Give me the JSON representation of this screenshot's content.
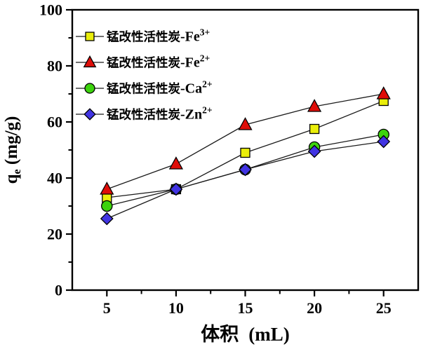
{
  "chart_data": {
    "type": "line",
    "title": "",
    "xlabel": "体积 (mL)",
    "ylabel": "qe (mg/g)",
    "xlabel_parts": {
      "cjk": "体积",
      "unit": "(mL)"
    },
    "ylabel_parts": {
      "base": "q",
      "subscript": "e",
      "unit": " (mg/g)"
    },
    "x": [
      5,
      10,
      15,
      20,
      25
    ],
    "xlim": [
      2.5,
      27.5
    ],
    "ylim": [
      0,
      100
    ],
    "x_major_ticks": [
      5,
      10,
      15,
      20,
      25
    ],
    "x_minor_ticks": [
      7.5,
      12.5,
      17.5,
      22.5
    ],
    "y_major_ticks": [
      0,
      20,
      40,
      60,
      80,
      100
    ],
    "y_minor_ticks": [
      10,
      30,
      50,
      70,
      90
    ],
    "grid": false,
    "legend_position": "upper-left-inside",
    "series": [
      {
        "id": "fe3",
        "name": "锰改性活性炭-Fe3+",
        "legend_prefix": "锰改性活性炭",
        "legend_chem": "-Fe",
        "legend_charge": "3+",
        "marker": "square",
        "color": "#EAEE0A",
        "values": [
          33,
          36,
          49,
          57.5,
          67.5
        ]
      },
      {
        "id": "fe2",
        "name": "锰改性活性炭-Fe2+",
        "legend_prefix": "锰改性活性炭",
        "legend_chem": "-Fe",
        "legend_charge": "2+",
        "marker": "triangle",
        "color": "#DF0D08",
        "values": [
          36,
          45,
          59,
          65.5,
          70
        ]
      },
      {
        "id": "ca2",
        "name": "锰改性活性炭-Ca2+",
        "legend_prefix": "锰改性活性炭",
        "legend_chem": "-Ca",
        "legend_charge": "2+",
        "marker": "circle",
        "color": "#3CD30D",
        "values": [
          30,
          36,
          43,
          51,
          55.5
        ]
      },
      {
        "id": "zn2",
        "name": "锰改性活性炭-Zn2+",
        "legend_prefix": "锰改性活性炭",
        "legend_chem": "-Zn",
        "legend_charge": "2+",
        "marker": "diamond",
        "color": "#4134E2",
        "values": [
          25.5,
          36,
          43,
          49.5,
          53
        ]
      }
    ]
  },
  "colors": {
    "axis": "#000000",
    "background": "#ffffff",
    "line": "#1a1a1a"
  }
}
